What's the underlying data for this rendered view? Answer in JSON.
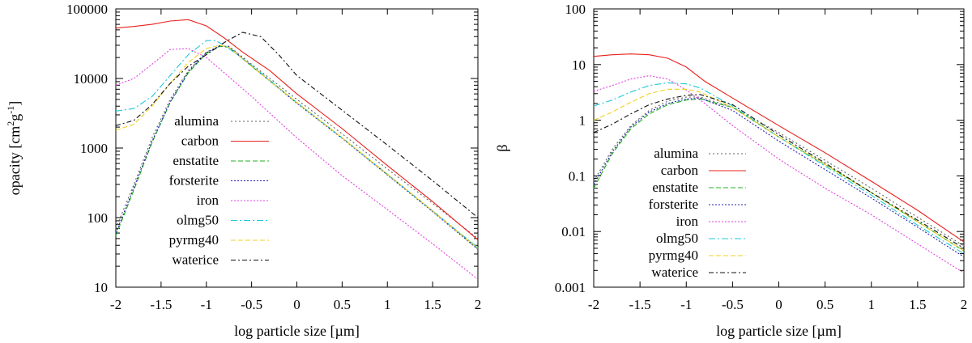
{
  "chart_data": [
    {
      "type": "line",
      "id": "opacity",
      "xlabel": "log particle size [µm]",
      "ylabel": "opacity [cm²g⁻¹]",
      "ylabel_parts": {
        "pre": "opacity [cm",
        "sup1": "2",
        "mid": "g",
        "sup2": "-1",
        "post": "]"
      },
      "yscale": "log",
      "xlim": [
        -2,
        2
      ],
      "ylim": [
        10,
        100000
      ],
      "xticks": [
        -2,
        -1.5,
        -1,
        -0.5,
        0,
        0.5,
        1,
        1.5,
        2
      ],
      "xtick_labels": [
        "-2",
        "-1.5",
        "-1",
        "-0.5",
        "0",
        "0.5",
        "1",
        "1.5",
        "2"
      ],
      "yticks": [
        10,
        100,
        1000,
        10000,
        100000
      ],
      "ytick_labels": [
        "10",
        "100",
        "1000",
        "10000",
        "100000"
      ],
      "legend_position": "middle-left",
      "series": [
        {
          "name": "alumina",
          "color": "#606060",
          "dash": "2,3",
          "x": [
            -2,
            -1.8,
            -1.6,
            -1.4,
            -1.2,
            -1.0,
            -0.85,
            -0.75,
            -0.5,
            0,
            0.5,
            1,
            1.5,
            2
          ],
          "y": [
            70,
            300,
            1400,
            5000,
            13000,
            24000,
            29000,
            29000,
            16000,
            5000,
            1600,
            500,
            160,
            50
          ]
        },
        {
          "name": "carbon",
          "color": "#e8201c",
          "dash": "",
          "x": [
            -2,
            -1.8,
            -1.6,
            -1.4,
            -1.2,
            -1.0,
            -0.8,
            -0.6,
            -0.3,
            0,
            0.5,
            1,
            1.5,
            2
          ],
          "y": [
            53000,
            56000,
            60000,
            67000,
            70000,
            57000,
            38000,
            24000,
            13000,
            6000,
            1900,
            560,
            170,
            48
          ]
        },
        {
          "name": "enstatite",
          "color": "#20b020",
          "dash": "6,3",
          "x": [
            -2,
            -1.8,
            -1.6,
            -1.4,
            -1.2,
            -1.0,
            -0.85,
            -0.75,
            -0.5,
            0,
            0.5,
            1,
            1.5,
            2
          ],
          "y": [
            55,
            250,
            1200,
            4500,
            12000,
            23000,
            29000,
            28000,
            15000,
            4500,
            1400,
            420,
            125,
            36
          ]
        },
        {
          "name": "forsterite",
          "color": "#2020b0",
          "dash": "2,2",
          "x": [
            -2,
            -1.8,
            -1.6,
            -1.4,
            -1.2,
            -1.0,
            -0.85,
            -0.75,
            -0.5,
            0,
            0.5,
            1,
            1.5,
            2
          ],
          "y": [
            60,
            270,
            1250,
            4600,
            12500,
            23500,
            29500,
            28500,
            15200,
            4400,
            1380,
            410,
            122,
            35
          ]
        },
        {
          "name": "iron",
          "color": "#e040e0",
          "dash": "2,2",
          "x": [
            -2,
            -1.8,
            -1.6,
            -1.4,
            -1.2,
            -1.0,
            -0.8,
            -0.5,
            0,
            0.5,
            1,
            1.5,
            2
          ],
          "y": [
            8000,
            10000,
            16000,
            26000,
            27000,
            20000,
            12000,
            5500,
            1400,
            400,
            130,
            42,
            13
          ]
        },
        {
          "name": "olmg50",
          "color": "#20c8d8",
          "dash": "8,3,2,3",
          "x": [
            -2,
            -1.8,
            -1.6,
            -1.4,
            -1.2,
            -1.0,
            -0.9,
            -0.8,
            -0.5,
            0,
            0.5,
            1,
            1.5,
            2
          ],
          "y": [
            3400,
            3700,
            5500,
            11000,
            22000,
            35000,
            35000,
            30000,
            15500,
            4500,
            1400,
            420,
            125,
            37
          ]
        },
        {
          "name": "pyrmg40",
          "color": "#f0d020",
          "dash": "6,3",
          "x": [
            -2,
            -1.8,
            -1.6,
            -1.4,
            -1.2,
            -1.0,
            -0.85,
            -0.75,
            -0.5,
            0,
            0.5,
            1,
            1.5,
            2
          ],
          "y": [
            1800,
            2200,
            4000,
            8500,
            17000,
            27000,
            30000,
            28000,
            15000,
            4500,
            1400,
            420,
            125,
            36
          ]
        },
        {
          "name": "waterice",
          "color": "#101010",
          "dash": "6,3,2,3",
          "x": [
            -2,
            -1.8,
            -1.6,
            -1.4,
            -1.2,
            -1.0,
            -0.8,
            -0.6,
            -0.4,
            -0.2,
            0,
            0.5,
            1,
            1.5,
            2
          ],
          "y": [
            2100,
            2500,
            4200,
            8500,
            15000,
            22000,
            33000,
            46000,
            40000,
            22000,
            11000,
            3500,
            1100,
            340,
            100
          ]
        }
      ]
    },
    {
      "type": "line",
      "id": "beta",
      "xlabel": "log particle size [µm]",
      "ylabel": "β",
      "yscale": "log",
      "xlim": [
        -2,
        2
      ],
      "ylim": [
        0.001,
        100
      ],
      "xticks": [
        -2,
        -1.5,
        -1,
        -0.5,
        0,
        0.5,
        1,
        1.5,
        2
      ],
      "xtick_labels": [
        "-2",
        "-1.5",
        "-1",
        "-0.5",
        "0",
        "0.5",
        "1",
        "1.5",
        "2"
      ],
      "yticks": [
        0.001,
        0.01,
        0.1,
        1,
        10,
        100
      ],
      "ytick_labels": [
        "0.001",
        "0.01",
        "0.1",
        "1",
        "10",
        "100"
      ],
      "legend_position": "bottom-left",
      "series": [
        {
          "name": "alumina",
          "color": "#606060",
          "dash": "2,3",
          "x": [
            -2,
            -1.8,
            -1.6,
            -1.4,
            -1.2,
            -1.0,
            -0.85,
            -0.5,
            0,
            0.5,
            1,
            1.5,
            2
          ],
          "y": [
            0.08,
            0.3,
            0.8,
            1.5,
            2.2,
            2.6,
            2.6,
            1.7,
            0.6,
            0.19,
            0.06,
            0.018,
            0.0055
          ]
        },
        {
          "name": "carbon",
          "color": "#e8201c",
          "dash": "",
          "x": [
            -2,
            -1.8,
            -1.6,
            -1.4,
            -1.2,
            -1.0,
            -0.8,
            -0.5,
            0,
            0.5,
            1,
            1.5,
            2
          ],
          "y": [
            14,
            15,
            15.5,
            15,
            13,
            9,
            5,
            2.5,
            0.8,
            0.26,
            0.08,
            0.024,
            0.0065
          ]
        },
        {
          "name": "enstatite",
          "color": "#20b020",
          "dash": "6,3",
          "x": [
            -2,
            -1.8,
            -1.6,
            -1.4,
            -1.2,
            -1.0,
            -0.85,
            -0.5,
            0,
            0.5,
            1,
            1.5,
            2
          ],
          "y": [
            0.06,
            0.25,
            0.7,
            1.3,
            1.9,
            2.3,
            2.4,
            1.7,
            0.5,
            0.16,
            0.05,
            0.015,
            0.0045
          ]
        },
        {
          "name": "forsterite",
          "color": "#2020b0",
          "dash": "2,2",
          "x": [
            -2,
            -1.8,
            -1.6,
            -1.4,
            -1.2,
            -1.0,
            -0.85,
            -0.5,
            0,
            0.5,
            1,
            1.5,
            2
          ],
          "y": [
            0.07,
            0.27,
            0.75,
            1.4,
            2.0,
            2.4,
            2.5,
            1.5,
            0.42,
            0.13,
            0.04,
            0.012,
            0.0035
          ]
        },
        {
          "name": "iron",
          "color": "#e040e0",
          "dash": "2,2",
          "x": [
            -2,
            -1.8,
            -1.6,
            -1.4,
            -1.2,
            -1.0,
            -0.8,
            -0.5,
            0,
            0.5,
            1,
            1.5,
            2
          ],
          "y": [
            3.3,
            4.2,
            5.5,
            6.3,
            5.5,
            3.5,
            2.0,
            0.8,
            0.2,
            0.06,
            0.02,
            0.006,
            0.0018
          ]
        },
        {
          "name": "olmg50",
          "color": "#20c8d8",
          "dash": "8,3,2,3",
          "x": [
            -2,
            -1.8,
            -1.6,
            -1.4,
            -1.2,
            -1.0,
            -0.85,
            -0.5,
            0,
            0.5,
            1,
            1.5,
            2
          ],
          "y": [
            1.8,
            2.3,
            3.2,
            4.2,
            4.7,
            4.5,
            3.8,
            1.8,
            0.5,
            0.15,
            0.045,
            0.013,
            0.004
          ]
        },
        {
          "name": "pyrmg40",
          "color": "#f0d020",
          "dash": "6,3",
          "x": [
            -2,
            -1.8,
            -1.6,
            -1.4,
            -1.2,
            -1.0,
            -0.85,
            -0.5,
            0,
            0.5,
            1,
            1.5,
            2
          ],
          "y": [
            1.0,
            1.4,
            2.1,
            3.0,
            3.6,
            3.6,
            3.2,
            1.7,
            0.5,
            0.16,
            0.05,
            0.015,
            0.0045
          ]
        },
        {
          "name": "waterice",
          "color": "#101010",
          "dash": "6,3,2,3",
          "x": [
            -2,
            -1.8,
            -1.6,
            -1.4,
            -1.2,
            -1.0,
            -0.85,
            -0.5,
            0,
            0.5,
            1,
            1.5,
            2
          ],
          "y": [
            0.6,
            0.85,
            1.3,
            1.9,
            2.4,
            2.8,
            2.9,
            1.9,
            0.55,
            0.17,
            0.05,
            0.016,
            0.005
          ]
        }
      ]
    }
  ]
}
